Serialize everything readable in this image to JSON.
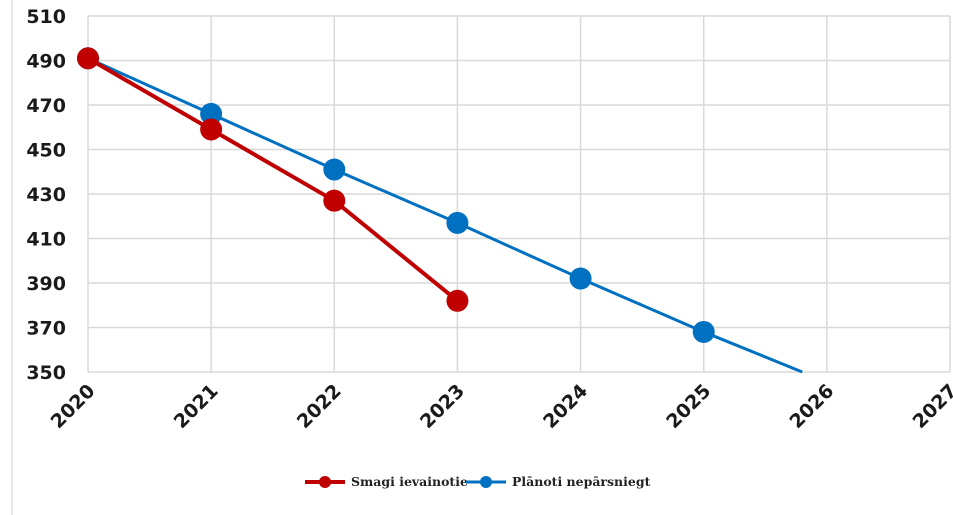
{
  "chart_data": {
    "type": "line",
    "x": [
      2020,
      2021,
      2022,
      2023,
      2024,
      2025,
      2026,
      2027
    ],
    "x_tick_labels": [
      "2020",
      "2021",
      "2022",
      "2023",
      "2024",
      "2025",
      "2026",
      "2027"
    ],
    "y_tick_labels": [
      "350",
      "370",
      "390",
      "410",
      "430",
      "450",
      "470",
      "490",
      "510"
    ],
    "xlim": [
      2020,
      2027
    ],
    "ylim": [
      350,
      510
    ],
    "grid": true,
    "legend_position": "bottom",
    "series": [
      {
        "name": "Smagi ievainotie",
        "color": "#c00000",
        "x": [
          2020,
          2021,
          2022,
          2023
        ],
        "y": [
          491,
          459,
          427,
          382
        ]
      },
      {
        "name": "Plānoti nepārsniegt",
        "color": "#0070c0",
        "x": [
          2020,
          2021,
          2022,
          2023,
          2024,
          2025
        ],
        "y": [
          491,
          466,
          441,
          417,
          392,
          368
        ],
        "line_extends_to": [
          2025.8,
          350
        ]
      }
    ]
  }
}
